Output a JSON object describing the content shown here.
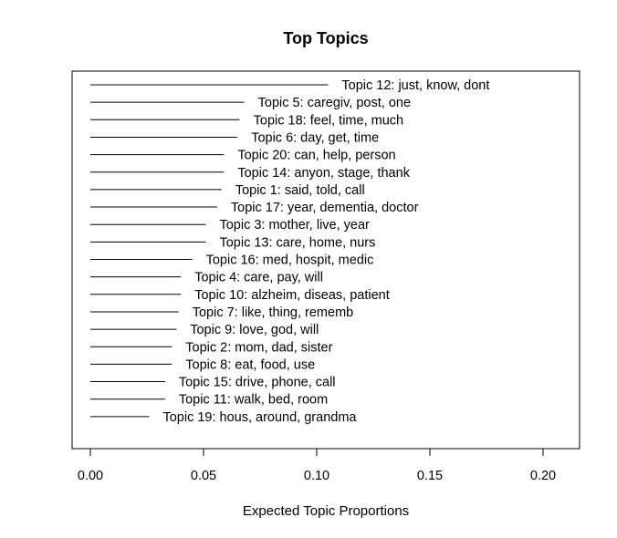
{
  "chart_data": {
    "type": "bar",
    "orientation": "horizontal",
    "title": "Top Topics",
    "xlabel": "Expected Topic Proportions",
    "ylabel": "",
    "xlim": [
      0,
      0.22
    ],
    "xticks": [
      0.0,
      0.05,
      0.1,
      0.15,
      0.2
    ],
    "xtick_labels": [
      "0.00",
      "0.05",
      "0.10",
      "0.15",
      "0.20"
    ],
    "grid": false,
    "categories": [
      "Topic 12: just, know, dont",
      "Topic 5: caregiv, post, one",
      "Topic 18: feel, time, much",
      "Topic 6: day, get, time",
      "Topic 20: can, help, person",
      "Topic 14: anyon, stage, thank",
      "Topic 1: said, told, call",
      "Topic 17: year, dementia, doctor",
      "Topic 3: mother, live, year",
      "Topic 13: care, home, nurs",
      "Topic 16: med, hospit, medic",
      "Topic 4: care, pay, will",
      "Topic 10: alzheim, diseas, patient",
      "Topic 7: like, thing, rememb",
      "Topic 9: love, god, will",
      "Topic 2: mom, dad, sister",
      "Topic 8: eat, food, use",
      "Topic 15: drive, phone, call",
      "Topic 11: walk, bed, room",
      "Topic 19: hous, around, grandma"
    ],
    "values": [
      0.105,
      0.068,
      0.066,
      0.065,
      0.059,
      0.059,
      0.058,
      0.056,
      0.051,
      0.051,
      0.045,
      0.04,
      0.04,
      0.039,
      0.038,
      0.036,
      0.036,
      0.033,
      0.033,
      0.026
    ]
  }
}
